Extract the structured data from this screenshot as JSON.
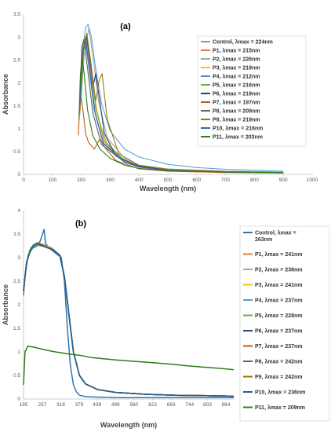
{
  "chart_data": [
    {
      "type": "line",
      "title": "(a)",
      "xlabel": "Wavelength  (nm)",
      "ylabel": "Absorbance",
      "xlim": [
        0,
        1000
      ],
      "ylim": [
        0,
        3.5
      ],
      "xticks": [
        "0",
        "100",
        "200",
        "300",
        "400",
        "500",
        "600",
        "700",
        "800",
        "900",
        "1000"
      ],
      "yticks": [
        "0",
        "0.5",
        "1",
        "1.5",
        "2",
        "2.5",
        "3",
        "3.5"
      ],
      "legend_position": "right",
      "series": [
        {
          "name": "Control, λmax = 224nm",
          "color": "#5aa6dc",
          "x": [
            195,
            205,
            215,
            224,
            235,
            250,
            270,
            300,
            350,
            400,
            500,
            600,
            700,
            800,
            900
          ],
          "y": [
            1.4,
            2.7,
            3.2,
            3.28,
            3.0,
            2.3,
            1.55,
            0.95,
            0.55,
            0.38,
            0.22,
            0.15,
            0.11,
            0.09,
            0.07
          ]
        },
        {
          "name": "P1, λmax = 215nm",
          "color": "#ed7d31",
          "x": [
            195,
            205,
            215,
            225,
            240,
            260,
            290,
            350,
            400,
            500,
            700,
            900
          ],
          "y": [
            1.5,
            2.7,
            3.0,
            2.65,
            1.9,
            1.2,
            0.65,
            0.3,
            0.17,
            0.1,
            0.06,
            0.04
          ]
        },
        {
          "name": "P2, λmax = 226nm",
          "color": "#a5a5a5",
          "x": [
            195,
            210,
            226,
            240,
            260,
            290,
            350,
            400,
            500,
            700,
            900
          ],
          "y": [
            1.3,
            2.6,
            3.2,
            2.6,
            1.6,
            0.8,
            0.35,
            0.2,
            0.12,
            0.07,
            0.05
          ]
        },
        {
          "name": "P3, λmax = 219nm",
          "color": "#ffc000",
          "x": [
            195,
            208,
            219,
            232,
            250,
            280,
            350,
            400,
            500,
            700,
            900
          ],
          "y": [
            1.4,
            2.7,
            3.05,
            2.5,
            1.5,
            0.75,
            0.3,
            0.18,
            0.1,
            0.06,
            0.04
          ]
        },
        {
          "name": "P4, λmax = 212nm",
          "color": "#4a90c9",
          "x": [
            195,
            203,
            212,
            225,
            245,
            275,
            350,
            400,
            500,
            700,
            900
          ],
          "y": [
            1.5,
            2.6,
            2.98,
            2.4,
            1.4,
            0.7,
            0.28,
            0.17,
            0.1,
            0.06,
            0.04
          ]
        },
        {
          "name": "P5, λmax = 216nm",
          "color": "#70ad47",
          "x": [
            195,
            205,
            216,
            230,
            250,
            280,
            350,
            400,
            500,
            700,
            900
          ],
          "y": [
            1.6,
            2.8,
            3.02,
            2.5,
            1.45,
            0.72,
            0.3,
            0.18,
            0.1,
            0.06,
            0.04
          ]
        },
        {
          "name": "P6, λmax = 219nm",
          "color": "#264478",
          "x": [
            195,
            208,
            219,
            232,
            242,
            250,
            262,
            280,
            320,
            400,
            500,
            700,
            900
          ],
          "y": [
            1.5,
            2.7,
            3.0,
            2.4,
            1.95,
            2.2,
            1.7,
            0.9,
            0.4,
            0.18,
            0.1,
            0.06,
            0.04
          ]
        },
        {
          "name": "P7, λmax = 197nm",
          "color": "#c55a11",
          "x": [
            190,
            197,
            205,
            215,
            225,
            245,
            265,
            280,
            320,
            400,
            500,
            700,
            900
          ],
          "y": [
            0.85,
            1.8,
            1.45,
            0.9,
            0.7,
            0.55,
            0.78,
            0.6,
            0.3,
            0.12,
            0.07,
            0.04,
            0.03
          ]
        },
        {
          "name": "P8, λmax = 209nm",
          "color": "#606060",
          "x": [
            195,
            202,
            209,
            222,
            240,
            270,
            350,
            400,
            500,
            700,
            900
          ],
          "y": [
            1.6,
            2.8,
            2.95,
            2.3,
            1.35,
            0.65,
            0.27,
            0.16,
            0.09,
            0.05,
            0.04
          ]
        },
        {
          "name": "P9, λmax = 219nm",
          "color": "#9c7a1a",
          "x": [
            195,
            208,
            219,
            232,
            250,
            262,
            272,
            290,
            330,
            400,
            500,
            700,
            900
          ],
          "y": [
            1.4,
            2.7,
            3.08,
            2.5,
            1.6,
            2.05,
            2.2,
            1.2,
            0.45,
            0.2,
            0.11,
            0.06,
            0.04
          ]
        },
        {
          "name": "P10, λmax = 216nm",
          "color": "#2e6ca8",
          "x": [
            195,
            205,
            216,
            228,
            248,
            278,
            350,
            400,
            500,
            700,
            900
          ],
          "y": [
            1.5,
            2.7,
            2.9,
            2.35,
            1.35,
            0.66,
            0.27,
            0.16,
            0.09,
            0.05,
            0.04
          ]
        },
        {
          "name": "P11, λmax = 203nm",
          "color": "#2e7d1b",
          "x": [
            192,
            197,
            203,
            210,
            222,
            240,
            265,
            300,
            350,
            400,
            500,
            700,
            900
          ],
          "y": [
            1.2,
            2.2,
            2.55,
            2.2,
            1.4,
            0.85,
            0.55,
            0.35,
            0.2,
            0.13,
            0.08,
            0.05,
            0.04
          ]
        }
      ]
    },
    {
      "type": "line",
      "title": "(b)",
      "xlabel": "Wavelength (nm)",
      "ylabel": "Absorbance",
      "xlim": [
        195,
        890
      ],
      "ylim": [
        0,
        4
      ],
      "xticks": [
        "195",
        "257",
        "318",
        "379",
        "438",
        "499",
        "560",
        "622",
        "683",
        "744",
        "803",
        "864"
      ],
      "yticks": [
        "0",
        "0.5",
        "1",
        "1.5",
        "2",
        "2.5",
        "3",
        "3.5",
        "4"
      ],
      "legend_position": "right",
      "series": [
        {
          "name": "Control, λmax = 263nm",
          "color": "#2e75b6",
          "x": [
            195,
            200,
            210,
            225,
            240,
            250,
            258,
            263,
            268,
            280,
            300,
            320,
            330,
            340,
            350,
            360,
            370,
            380,
            400,
            440,
            500,
            600,
            700,
            800,
            890
          ],
          "y": [
            2.2,
            2.6,
            3.05,
            3.2,
            3.25,
            3.35,
            3.5,
            3.6,
            3.3,
            3.2,
            3.1,
            3.0,
            2.5,
            1.5,
            0.7,
            0.3,
            0.15,
            0.08,
            0.05,
            0.04,
            0.03,
            0.03,
            0.03,
            0.03,
            0.03
          ]
        },
        {
          "name": "P1, λmax = 241nm",
          "color": "#ed7d31",
          "x": [
            195,
            205,
            220,
            241,
            260,
            290,
            315,
            330,
            345,
            360,
            380,
            400,
            440,
            500,
            600,
            700,
            800,
            890
          ],
          "y": [
            2.3,
            2.9,
            3.2,
            3.32,
            3.28,
            3.2,
            3.05,
            2.6,
            1.8,
            1.0,
            0.5,
            0.32,
            0.2,
            0.14,
            0.1,
            0.08,
            0.07,
            0.06
          ]
        },
        {
          "name": "P2, λmax = 236nm",
          "color": "#a5a5a5",
          "x": [
            195,
            205,
            220,
            236,
            260,
            290,
            315,
            330,
            345,
            360,
            380,
            400,
            440,
            500,
            600,
            700,
            800,
            890
          ],
          "y": [
            2.3,
            2.9,
            3.2,
            3.3,
            3.27,
            3.2,
            3.05,
            2.6,
            1.8,
            1.0,
            0.5,
            0.32,
            0.2,
            0.14,
            0.1,
            0.08,
            0.07,
            0.06
          ]
        },
        {
          "name": "P3, λmax = 241nm",
          "color": "#ffc000",
          "x": [
            195,
            205,
            220,
            241,
            260,
            290,
            315,
            330,
            345,
            360,
            380,
            400,
            440,
            500,
            600,
            700,
            800,
            890
          ],
          "y": [
            2.3,
            2.9,
            3.2,
            3.31,
            3.26,
            3.18,
            3.05,
            2.6,
            1.8,
            1.0,
            0.5,
            0.32,
            0.2,
            0.14,
            0.1,
            0.08,
            0.07,
            0.06
          ]
        },
        {
          "name": "P4, λmax = 237nm",
          "color": "#5b9bd5",
          "x": [
            195,
            205,
            220,
            237,
            260,
            290,
            315,
            330,
            345,
            360,
            380,
            400,
            440,
            500,
            600,
            700,
            800,
            890
          ],
          "y": [
            2.3,
            2.9,
            3.2,
            3.3,
            3.25,
            3.18,
            3.05,
            2.6,
            1.8,
            1.0,
            0.5,
            0.32,
            0.2,
            0.14,
            0.1,
            0.08,
            0.07,
            0.06
          ]
        },
        {
          "name": "P5, λmax = 228nm",
          "color": "#70ad47",
          "x": [
            195,
            205,
            215,
            228,
            260,
            290,
            315,
            330,
            345,
            360,
            380,
            400,
            440,
            500,
            600,
            700,
            800,
            890
          ],
          "y": [
            2.3,
            2.9,
            3.15,
            3.28,
            3.24,
            3.17,
            3.05,
            2.6,
            1.8,
            1.0,
            0.5,
            0.32,
            0.2,
            0.14,
            0.1,
            0.08,
            0.07,
            0.06
          ]
        },
        {
          "name": "P6, λmax = 237nm",
          "color": "#264478",
          "x": [
            195,
            205,
            220,
            237,
            260,
            290,
            315,
            330,
            345,
            360,
            380,
            400,
            440,
            500,
            600,
            700,
            800,
            890
          ],
          "y": [
            2.3,
            2.9,
            3.2,
            3.3,
            3.25,
            3.18,
            3.05,
            2.6,
            1.8,
            1.0,
            0.5,
            0.32,
            0.2,
            0.14,
            0.1,
            0.08,
            0.07,
            0.06
          ]
        },
        {
          "name": "P7, λmax = 237nm",
          "color": "#c55a11",
          "x": [
            195,
            205,
            220,
            237,
            260,
            290,
            315,
            330,
            345,
            360,
            380,
            400,
            440,
            500,
            600,
            700,
            800,
            890
          ],
          "y": [
            2.3,
            2.9,
            3.2,
            3.29,
            3.24,
            3.17,
            3.05,
            2.6,
            1.8,
            1.0,
            0.5,
            0.32,
            0.2,
            0.14,
            0.1,
            0.08,
            0.07,
            0.06
          ]
        },
        {
          "name": "P8, λmax = 242nm",
          "color": "#636363",
          "x": [
            195,
            205,
            220,
            242,
            260,
            290,
            315,
            330,
            345,
            360,
            380,
            400,
            440,
            500,
            600,
            700,
            800,
            890
          ],
          "y": [
            2.3,
            2.9,
            3.2,
            3.3,
            3.26,
            3.18,
            3.05,
            2.6,
            1.8,
            1.0,
            0.5,
            0.32,
            0.2,
            0.14,
            0.1,
            0.08,
            0.07,
            0.06
          ]
        },
        {
          "name": "P9, λmax = 242nm",
          "color": "#997300",
          "x": [
            195,
            205,
            220,
            242,
            260,
            290,
            315,
            330,
            345,
            360,
            380,
            400,
            440,
            500,
            600,
            700,
            800,
            890
          ],
          "y": [
            2.3,
            2.9,
            3.2,
            3.31,
            3.26,
            3.18,
            3.05,
            2.6,
            1.8,
            1.0,
            0.5,
            0.32,
            0.2,
            0.14,
            0.1,
            0.08,
            0.07,
            0.06
          ]
        },
        {
          "name": "P10, λmax = 236nm",
          "color": "#1f5f99",
          "x": [
            195,
            205,
            220,
            236,
            260,
            290,
            315,
            330,
            345,
            360,
            380,
            400,
            440,
            500,
            600,
            700,
            800,
            890
          ],
          "y": [
            2.3,
            2.9,
            3.2,
            3.3,
            3.25,
            3.17,
            3.05,
            2.6,
            1.8,
            1.0,
            0.5,
            0.32,
            0.2,
            0.14,
            0.1,
            0.08,
            0.07,
            0.06
          ]
        },
        {
          "name": "P11, λmax = 209nm",
          "color": "#2e7d1b",
          "x": [
            195,
            200,
            209,
            230,
            260,
            300,
            350,
            379,
            420,
            500,
            560,
            622,
            683,
            744,
            803,
            864,
            890
          ],
          "y": [
            0.3,
            1.0,
            1.12,
            1.1,
            1.05,
            1.0,
            0.95,
            0.93,
            0.88,
            0.83,
            0.8,
            0.77,
            0.74,
            0.7,
            0.67,
            0.64,
            0.62
          ]
        }
      ]
    }
  ]
}
